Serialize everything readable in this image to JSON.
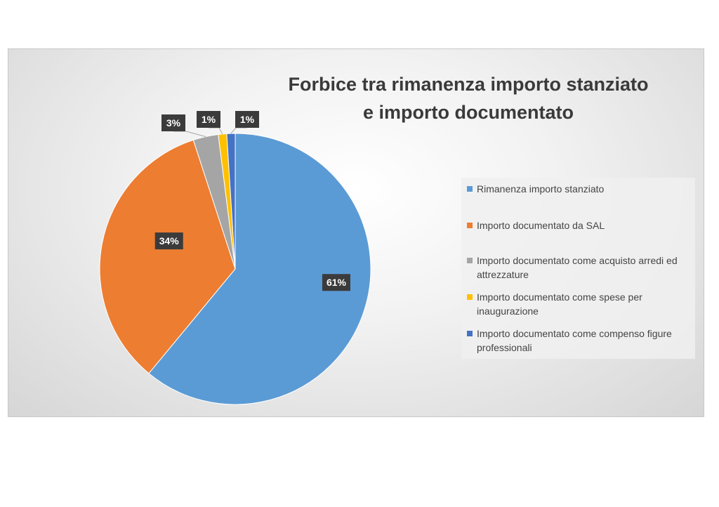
{
  "chart_data": {
    "type": "pie",
    "title": "Forbice tra rimanenza importo stanziato e importo documentato",
    "title_lines": [
      "Forbice tra rimanenza importo stanziato",
      "e importo documentato"
    ],
    "legend_position": "right",
    "slices": [
      {
        "label": "Rimanenza importo stanziato",
        "value": 61,
        "display": "61%",
        "color": "#5b9bd5"
      },
      {
        "label": "Importo documentato da SAL",
        "value": 34,
        "display": "34%",
        "color": "#ed7d31"
      },
      {
        "label": "Importo documentato come acquisto arredi ed attrezzature",
        "value": 3,
        "display": "3%",
        "color": "#a5a5a5"
      },
      {
        "label": "Importo documentato come spese per inaugurazione",
        "value": 1,
        "display": "1%",
        "color": "#ffc000"
      },
      {
        "label": "Importo documentato come compenso figure professionali",
        "value": 1,
        "display": "1%",
        "color": "#4472c4"
      }
    ]
  }
}
